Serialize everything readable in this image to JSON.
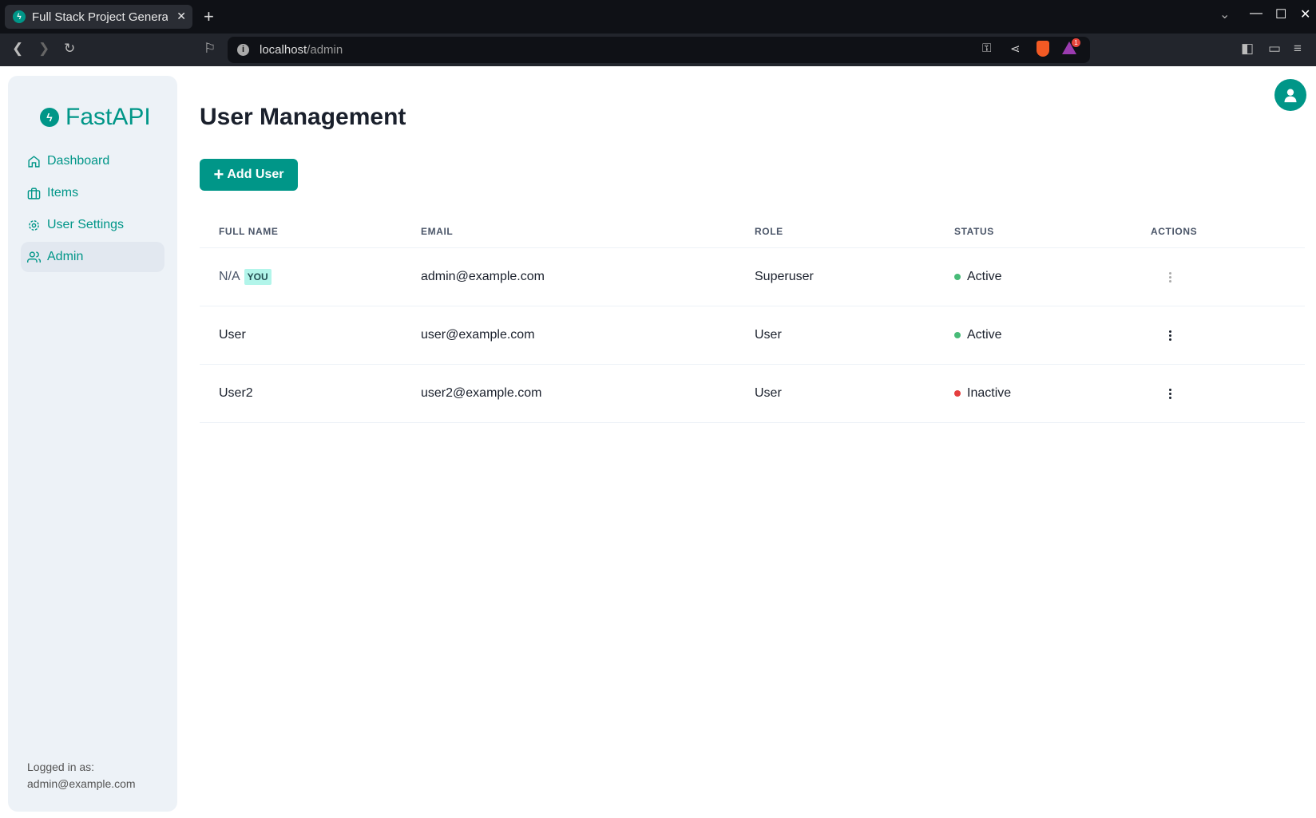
{
  "browser": {
    "tab_title": "Full Stack Project Generator",
    "url_host": "localhost",
    "url_path": "/admin",
    "extension_badge": "1"
  },
  "sidebar": {
    "logo": "FastAPI",
    "items": [
      {
        "label": "Dashboard",
        "icon": "home-icon"
      },
      {
        "label": "Items",
        "icon": "briefcase-icon"
      },
      {
        "label": "User Settings",
        "icon": "gear-icon"
      },
      {
        "label": "Admin",
        "icon": "users-icon",
        "active": true
      }
    ],
    "logged_in_label": "Logged in as:",
    "logged_in_email": "admin@example.com"
  },
  "main": {
    "title": "User Management",
    "add_button": "Add User",
    "columns": [
      "FULL NAME",
      "EMAIL",
      "ROLE",
      "STATUS",
      "ACTIONS"
    ],
    "rows": [
      {
        "name": "N/A",
        "badge": "YOU",
        "email": "admin@example.com",
        "role": "Superuser",
        "status": "Active"
      },
      {
        "name": "User",
        "email": "user@example.com",
        "role": "User",
        "status": "Active"
      },
      {
        "name": "User2",
        "email": "user2@example.com",
        "role": "User",
        "status": "Inactive"
      }
    ]
  },
  "colors": {
    "accent": "#009688",
    "active": "#48bb78",
    "inactive": "#e53e3e"
  }
}
